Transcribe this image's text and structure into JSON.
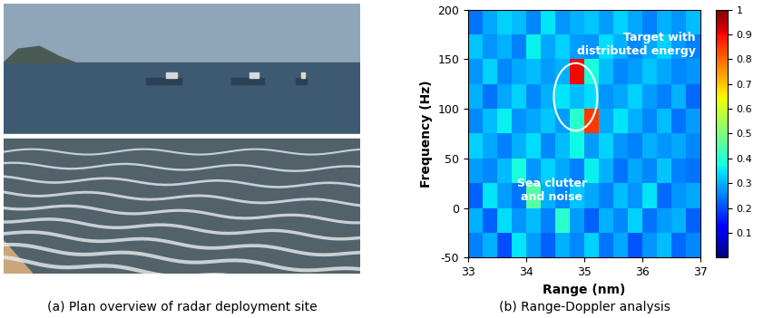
{
  "photo_caption": "(a) Plan overview of radar deployment site",
  "chart_data": {
    "type": "heatmap",
    "caption": "(b) Range-Doppler analysis",
    "xlabel": "Range (nm)",
    "ylabel": "Frequency (Hz)",
    "xlim": [
      33,
      37
    ],
    "ylim": [
      -50,
      200
    ],
    "xticks": [
      33,
      34,
      35,
      36,
      37
    ],
    "yticks": [
      -50,
      0,
      50,
      100,
      150,
      200
    ],
    "annotations": [
      "Target with\ndistributed energy",
      "Sea clutter\nand noise"
    ],
    "cells": [
      [
        0.25,
        0.3,
        0.2,
        0.35,
        0.28,
        0.22,
        0.3,
        0.26,
        0.33,
        0.24,
        0.29,
        0.21,
        0.27,
        0.31,
        0.23,
        0.26
      ],
      [
        0.3,
        0.22,
        0.34,
        0.27,
        0.31,
        0.25,
        0.4,
        0.28,
        0.22,
        0.3,
        0.26,
        0.33,
        0.24,
        0.28,
        0.3,
        0.22
      ],
      [
        0.22,
        0.35,
        0.28,
        0.24,
        0.45,
        0.3,
        0.26,
        0.32,
        0.29,
        0.25,
        0.31,
        0.27,
        0.35,
        0.23,
        0.27,
        0.29
      ],
      [
        0.28,
        0.26,
        0.31,
        0.38,
        0.27,
        0.33,
        0.29,
        0.25,
        0.36,
        0.3,
        0.24,
        0.29,
        0.26,
        0.32,
        0.25,
        0.24
      ],
      [
        0.33,
        0.29,
        0.25,
        0.3,
        0.34,
        0.26,
        0.31,
        0.37,
        0.28,
        0.33,
        0.27,
        0.25,
        0.3,
        0.27,
        0.29,
        0.26
      ],
      [
        0.26,
        0.31,
        0.36,
        0.27,
        0.29,
        0.32,
        0.28,
        0.4,
        0.85,
        0.29,
        0.35,
        0.3,
        0.26,
        0.31,
        0.24,
        0.28
      ],
      [
        0.3,
        0.24,
        0.29,
        0.33,
        0.26,
        0.3,
        0.35,
        0.31,
        0.34,
        0.27,
        0.29,
        0.33,
        0.28,
        0.25,
        0.3,
        0.23
      ],
      [
        0.27,
        0.33,
        0.26,
        0.29,
        0.31,
        0.28,
        0.3,
        0.9,
        0.38,
        0.31,
        0.26,
        0.28,
        0.32,
        0.29,
        0.26,
        0.27
      ],
      [
        0.32,
        0.27,
        0.3,
        0.25,
        0.36,
        0.29,
        0.33,
        0.28,
        0.27,
        0.34,
        0.3,
        0.26,
        0.29,
        0.33,
        0.28,
        0.25
      ],
      [
        0.24,
        0.29,
        0.33,
        0.31,
        0.26,
        0.35,
        0.27,
        0.3,
        0.32,
        0.28,
        0.33,
        0.29,
        0.25,
        0.3,
        0.27,
        0.31
      ]
    ],
    "colorbar_range": [
      0,
      1
    ],
    "colorbar_ticks": [
      0.1,
      0.2,
      0.3,
      0.4,
      0.5,
      0.6,
      0.7,
      0.8,
      0.9,
      1
    ]
  }
}
